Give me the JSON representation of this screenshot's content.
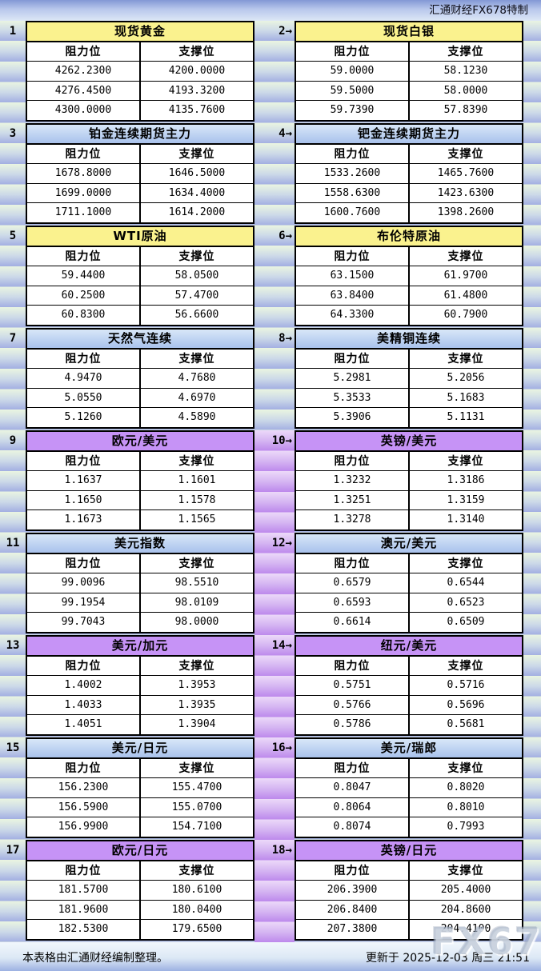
{
  "header": {
    "credit": "汇通财经FX678特制"
  },
  "columns": {
    "resistance": "阻力位",
    "support": "支撑位"
  },
  "colors": {
    "title_yellow": "#faf28e",
    "title_blue_top": "#d8e7f8",
    "title_blue_bottom": "#a9c2ec",
    "title_purple": "#c693f6",
    "stripe_green_top": "#eaf5e1",
    "stripe_blue_bottom": "#a3afe2",
    "stripe_purple_bottom": "#bd89ec"
  },
  "chart_data": {
    "type": "table",
    "columns": [
      "阻力位",
      "支撑位"
    ],
    "tables": [
      {
        "id": "spot-gold",
        "label": "1",
        "title": "现货黄金",
        "theme": "yellow",
        "rows": [
          [
            "4262.2300",
            "4200.0000"
          ],
          [
            "4276.4500",
            "4193.3200"
          ],
          [
            "4300.0000",
            "4135.7600"
          ]
        ]
      },
      {
        "id": "spot-silver",
        "label": "2→",
        "title": "现货白银",
        "theme": "yellow",
        "rows": [
          [
            "59.0000",
            "58.1230"
          ],
          [
            "59.5000",
            "58.0000"
          ],
          [
            "59.7390",
            "57.8390"
          ]
        ]
      },
      {
        "id": "platinum-futures",
        "label": "3",
        "title": "铂金连续期货主力",
        "theme": "blue",
        "rows": [
          [
            "1678.8000",
            "1646.5000"
          ],
          [
            "1699.0000",
            "1634.4000"
          ],
          [
            "1711.1000",
            "1614.2000"
          ]
        ]
      },
      {
        "id": "palladium-futures",
        "label": "4→",
        "title": "钯金连续期货主力",
        "theme": "blue",
        "rows": [
          [
            "1533.2600",
            "1465.7600"
          ],
          [
            "1558.6300",
            "1423.6300"
          ],
          [
            "1600.7600",
            "1398.2600"
          ]
        ]
      },
      {
        "id": "wti-crude",
        "label": "5",
        "title": "WTI原油",
        "theme": "yellow",
        "rows": [
          [
            "59.4400",
            "58.0500"
          ],
          [
            "60.2500",
            "57.4700"
          ],
          [
            "60.8300",
            "56.6600"
          ]
        ]
      },
      {
        "id": "brent-crude",
        "label": "6→",
        "title": "布伦特原油",
        "theme": "yellow",
        "rows": [
          [
            "63.1500",
            "61.9700"
          ],
          [
            "63.8400",
            "61.4800"
          ],
          [
            "64.3300",
            "60.7900"
          ]
        ]
      },
      {
        "id": "natural-gas",
        "label": "7",
        "title": "天然气连续",
        "theme": "blue",
        "rows": [
          [
            "4.9470",
            "4.7680"
          ],
          [
            "5.0550",
            "4.6970"
          ],
          [
            "5.1260",
            "4.5890"
          ]
        ]
      },
      {
        "id": "us-copper",
        "label": "8→",
        "title": "美精铜连续",
        "theme": "blue",
        "rows": [
          [
            "5.2981",
            "5.2056"
          ],
          [
            "5.3533",
            "5.1683"
          ],
          [
            "5.3906",
            "5.1131"
          ]
        ]
      },
      {
        "id": "eur-usd",
        "label": "9",
        "title": "欧元/美元",
        "theme": "purple",
        "rows": [
          [
            "1.1637",
            "1.1601"
          ],
          [
            "1.1650",
            "1.1578"
          ],
          [
            "1.1673",
            "1.1565"
          ]
        ]
      },
      {
        "id": "gbp-usd",
        "label": "10→",
        "title": "英镑/美元",
        "theme": "purple",
        "rows": [
          [
            "1.3232",
            "1.3186"
          ],
          [
            "1.3251",
            "1.3159"
          ],
          [
            "1.3278",
            "1.3140"
          ]
        ]
      },
      {
        "id": "usd-index",
        "label": "11",
        "title": "美元指数",
        "theme": "blue",
        "rows": [
          [
            "99.0096",
            "98.5510"
          ],
          [
            "99.1954",
            "98.0109"
          ],
          [
            "99.7043",
            "98.0000"
          ]
        ]
      },
      {
        "id": "aud-usd",
        "label": "12→",
        "title": "澳元/美元",
        "theme": "blue",
        "rows": [
          [
            "0.6579",
            "0.6544"
          ],
          [
            "0.6593",
            "0.6523"
          ],
          [
            "0.6614",
            "0.6509"
          ]
        ]
      },
      {
        "id": "usd-cad",
        "label": "13",
        "title": "美元/加元",
        "theme": "purple",
        "rows": [
          [
            "1.4002",
            "1.3953"
          ],
          [
            "1.4033",
            "1.3935"
          ],
          [
            "1.4051",
            "1.3904"
          ]
        ]
      },
      {
        "id": "nzd-usd",
        "label": "14→",
        "title": "纽元/美元",
        "theme": "purple",
        "rows": [
          [
            "0.5751",
            "0.5716"
          ],
          [
            "0.5766",
            "0.5696"
          ],
          [
            "0.5786",
            "0.5681"
          ]
        ]
      },
      {
        "id": "usd-jpy",
        "label": "15",
        "title": "美元/日元",
        "theme": "blue",
        "rows": [
          [
            "156.2300",
            "155.4700"
          ],
          [
            "156.5900",
            "155.0700"
          ],
          [
            "156.9900",
            "154.7100"
          ]
        ]
      },
      {
        "id": "usd-chf",
        "label": "16→",
        "title": "美元/瑞郎",
        "theme": "blue",
        "rows": [
          [
            "0.8047",
            "0.8020"
          ],
          [
            "0.8064",
            "0.8010"
          ],
          [
            "0.8074",
            "0.7993"
          ]
        ]
      },
      {
        "id": "eur-jpy",
        "label": "17",
        "title": "欧元/日元",
        "theme": "purple",
        "rows": [
          [
            "181.5700",
            "180.6100"
          ],
          [
            "181.9600",
            "180.0400"
          ],
          [
            "182.5300",
            "179.6500"
          ]
        ]
      },
      {
        "id": "gbp-jpy",
        "label": "18→",
        "title": "英镑/日元",
        "theme": "purple",
        "rows": [
          [
            "206.3900",
            "205.4000"
          ],
          [
            "206.8400",
            "204.8600"
          ],
          [
            "207.3800",
            "204.4100"
          ]
        ]
      }
    ]
  },
  "footer": {
    "left": "本表格由汇通财经编制整理。",
    "right": "更新于 2025-12-03 周三 21:51",
    "watermark": "FX678"
  }
}
